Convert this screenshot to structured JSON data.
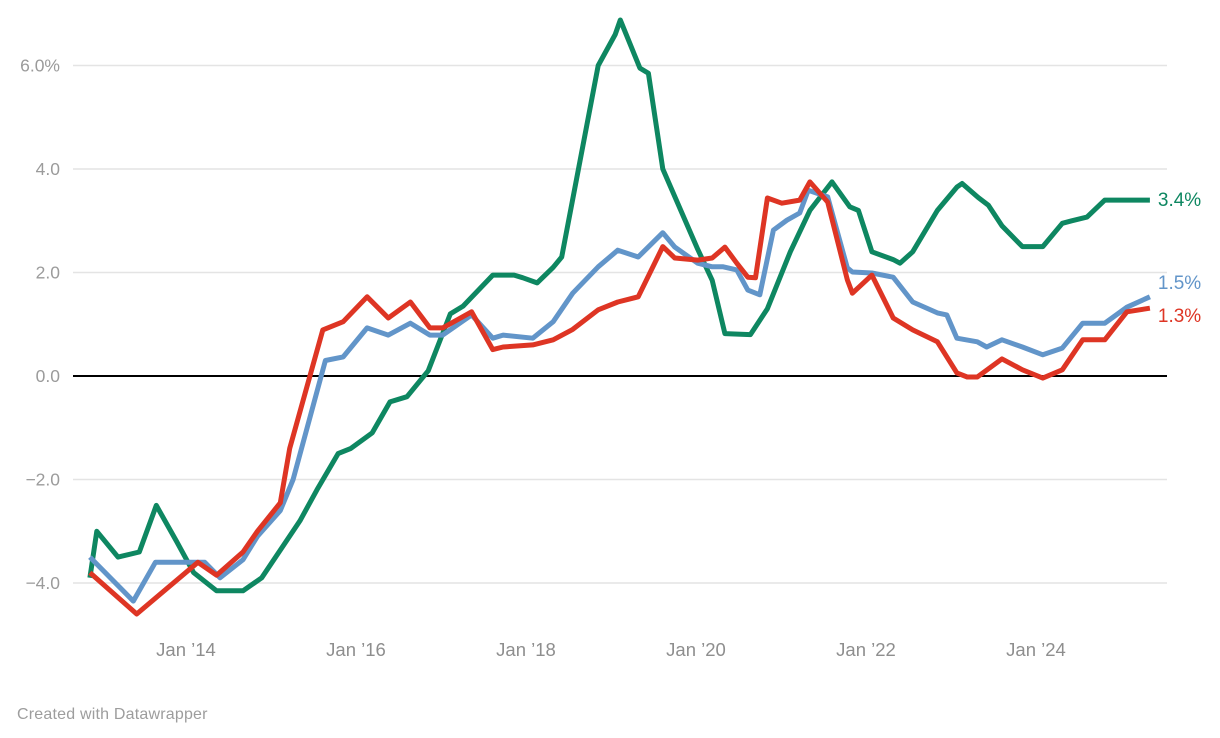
{
  "attribution": "Created with Datawrapper",
  "chart_data": {
    "type": "line",
    "title": "",
    "xlabel": "",
    "ylabel": "",
    "grid": "horizontal",
    "zero_baseline": true,
    "legend": "direct-end-labels",
    "y_axis": {
      "range": [
        -5.3,
        7.0
      ],
      "ticks": [
        {
          "value": 6,
          "label": "6.0%"
        },
        {
          "value": 4,
          "label": "4.0"
        },
        {
          "value": 2,
          "label": "2.0"
        },
        {
          "value": 0,
          "label": "0.0"
        },
        {
          "value": -2,
          "label": "−2.0"
        },
        {
          "value": -4,
          "label": "−4.0"
        }
      ]
    },
    "x_axis": {
      "range": [
        2012.85,
        2025.4
      ],
      "ticks": [
        {
          "year": 2014,
          "label": "Jan ’14"
        },
        {
          "year": 2016,
          "label": "Jan ’16"
        },
        {
          "year": 2018,
          "label": "Jan ’18"
        },
        {
          "year": 2020,
          "label": "Jan ’20"
        },
        {
          "year": 2022,
          "label": "Jan ’22"
        },
        {
          "year": 2024,
          "label": "Jan ’24"
        }
      ]
    },
    "series": [
      {
        "name": "green-series",
        "end_label": "3.4%",
        "color": "#0e8761",
        "points": [
          [
            2012.87,
            -3.9
          ],
          [
            2012.95,
            -3.0
          ],
          [
            2013.2,
            -3.5
          ],
          [
            2013.45,
            -3.4
          ],
          [
            2013.65,
            -2.5
          ],
          [
            2013.89,
            -3.2
          ],
          [
            2014.09,
            -3.8
          ],
          [
            2014.36,
            -4.15
          ],
          [
            2014.67,
            -4.15
          ],
          [
            2014.89,
            -3.9
          ],
          [
            2015.34,
            -2.8
          ],
          [
            2015.54,
            -2.2
          ],
          [
            2015.79,
            -1.5
          ],
          [
            2015.94,
            -1.4
          ],
          [
            2016.19,
            -1.1
          ],
          [
            2016.4,
            -0.5
          ],
          [
            2016.6,
            -0.4
          ],
          [
            2016.85,
            0.1
          ],
          [
            2017.11,
            1.2
          ],
          [
            2017.26,
            1.35
          ],
          [
            2017.61,
            1.95
          ],
          [
            2017.86,
            1.95
          ],
          [
            2017.96,
            1.9
          ],
          [
            2018.13,
            1.8
          ],
          [
            2018.32,
            2.1
          ],
          [
            2018.42,
            2.3
          ],
          [
            2018.85,
            6.0
          ],
          [
            2019.05,
            6.6
          ],
          [
            2019.11,
            6.88
          ],
          [
            2019.34,
            5.95
          ],
          [
            2019.44,
            5.85
          ],
          [
            2019.61,
            4.0
          ],
          [
            2020.02,
            2.45
          ],
          [
            2020.19,
            1.85
          ],
          [
            2020.34,
            0.82
          ],
          [
            2020.64,
            0.8
          ],
          [
            2020.84,
            1.3
          ],
          [
            2021.11,
            2.4
          ],
          [
            2021.34,
            3.2
          ],
          [
            2021.6,
            3.75
          ],
          [
            2021.81,
            3.27
          ],
          [
            2021.91,
            3.2
          ],
          [
            2022.07,
            2.4
          ],
          [
            2022.32,
            2.25
          ],
          [
            2022.4,
            2.18
          ],
          [
            2022.55,
            2.4
          ],
          [
            2022.84,
            3.2
          ],
          [
            2023.07,
            3.65
          ],
          [
            2023.13,
            3.72
          ],
          [
            2023.32,
            3.45
          ],
          [
            2023.44,
            3.3
          ],
          [
            2023.6,
            2.9
          ],
          [
            2023.72,
            2.7
          ],
          [
            2023.84,
            2.5
          ],
          [
            2024.08,
            2.5
          ],
          [
            2024.31,
            2.95
          ],
          [
            2024.42,
            3.0
          ],
          [
            2024.6,
            3.07
          ],
          [
            2024.81,
            3.4
          ],
          [
            2025.34,
            3.4
          ]
        ]
      },
      {
        "name": "blue-series",
        "end_label": "1.5%",
        "color": "#6295c9",
        "points": [
          [
            2012.87,
            -3.5
          ],
          [
            2013.38,
            -4.35
          ],
          [
            2013.64,
            -3.6
          ],
          [
            2014.22,
            -3.6
          ],
          [
            2014.4,
            -3.9
          ],
          [
            2014.67,
            -3.55
          ],
          [
            2014.84,
            -3.1
          ],
          [
            2015.11,
            -2.6
          ],
          [
            2015.26,
            -2.0
          ],
          [
            2015.64,
            0.3
          ],
          [
            2015.85,
            0.37
          ],
          [
            2016.13,
            0.93
          ],
          [
            2016.38,
            0.79
          ],
          [
            2016.64,
            1.02
          ],
          [
            2016.87,
            0.79
          ],
          [
            2017.02,
            0.79
          ],
          [
            2017.36,
            1.18
          ],
          [
            2017.61,
            0.73
          ],
          [
            2017.73,
            0.79
          ],
          [
            2018.08,
            0.73
          ],
          [
            2018.32,
            1.05
          ],
          [
            2018.55,
            1.6
          ],
          [
            2018.85,
            2.11
          ],
          [
            2019.08,
            2.43
          ],
          [
            2019.32,
            2.3
          ],
          [
            2019.61,
            2.77
          ],
          [
            2019.75,
            2.49
          ],
          [
            2020.02,
            2.18
          ],
          [
            2020.19,
            2.11
          ],
          [
            2020.32,
            2.11
          ],
          [
            2020.48,
            2.05
          ],
          [
            2020.61,
            1.66
          ],
          [
            2020.75,
            1.57
          ],
          [
            2020.91,
            2.82
          ],
          [
            2021.07,
            3.01
          ],
          [
            2021.22,
            3.15
          ],
          [
            2021.32,
            3.59
          ],
          [
            2021.55,
            3.46
          ],
          [
            2021.78,
            2.09
          ],
          [
            2021.84,
            2.01
          ],
          [
            2022.07,
            1.99
          ],
          [
            2022.32,
            1.91
          ],
          [
            2022.55,
            1.43
          ],
          [
            2022.84,
            1.22
          ],
          [
            2022.95,
            1.18
          ],
          [
            2023.07,
            0.73
          ],
          [
            2023.31,
            0.66
          ],
          [
            2023.42,
            0.56
          ],
          [
            2023.6,
            0.7
          ],
          [
            2023.84,
            0.56
          ],
          [
            2024.08,
            0.41
          ],
          [
            2024.31,
            0.54
          ],
          [
            2024.55,
            1.02
          ],
          [
            2024.81,
            1.02
          ],
          [
            2025.07,
            1.33
          ],
          [
            2025.34,
            1.53
          ]
        ]
      },
      {
        "name": "red-series",
        "end_label": "1.3%",
        "color": "#de3524",
        "points": [
          [
            2012.87,
            -3.8
          ],
          [
            2013.42,
            -4.6
          ],
          [
            2014.14,
            -3.6
          ],
          [
            2014.36,
            -3.85
          ],
          [
            2014.67,
            -3.4
          ],
          [
            2014.84,
            -3.0
          ],
          [
            2015.11,
            -2.45
          ],
          [
            2015.22,
            -1.4
          ],
          [
            2015.61,
            0.89
          ],
          [
            2015.85,
            1.05
          ],
          [
            2016.13,
            1.53
          ],
          [
            2016.38,
            1.12
          ],
          [
            2016.64,
            1.43
          ],
          [
            2016.87,
            0.93
          ],
          [
            2017.02,
            0.93
          ],
          [
            2017.36,
            1.24
          ],
          [
            2017.61,
            0.51
          ],
          [
            2017.73,
            0.56
          ],
          [
            2018.08,
            0.6
          ],
          [
            2018.32,
            0.7
          ],
          [
            2018.55,
            0.9
          ],
          [
            2018.85,
            1.28
          ],
          [
            2019.08,
            1.43
          ],
          [
            2019.32,
            1.53
          ],
          [
            2019.61,
            2.5
          ],
          [
            2019.75,
            2.28
          ],
          [
            2020.02,
            2.24
          ],
          [
            2020.19,
            2.28
          ],
          [
            2020.34,
            2.49
          ],
          [
            2020.48,
            2.18
          ],
          [
            2020.61,
            1.91
          ],
          [
            2020.7,
            1.9
          ],
          [
            2020.84,
            3.44
          ],
          [
            2021.01,
            3.34
          ],
          [
            2021.22,
            3.4
          ],
          [
            2021.34,
            3.75
          ],
          [
            2021.55,
            3.36
          ],
          [
            2021.78,
            1.86
          ],
          [
            2021.84,
            1.6
          ],
          [
            2022.07,
            1.95
          ],
          [
            2022.32,
            1.12
          ],
          [
            2022.55,
            0.89
          ],
          [
            2022.84,
            0.66
          ],
          [
            2023.07,
            0.06
          ],
          [
            2023.19,
            -0.02
          ],
          [
            2023.31,
            -0.02
          ],
          [
            2023.6,
            0.33
          ],
          [
            2023.84,
            0.12
          ],
          [
            2024.08,
            -0.04
          ],
          [
            2024.31,
            0.12
          ],
          [
            2024.55,
            0.7
          ],
          [
            2024.81,
            0.7
          ],
          [
            2025.07,
            1.24
          ],
          [
            2025.34,
            1.31
          ]
        ]
      }
    ],
    "style": {
      "grid_color": "#e4e4e4",
      "zero_line_color": "#000000",
      "y_label_color": "#9b9b9b",
      "x_label_color": "#8e8e8e",
      "background": "#ffffff"
    }
  }
}
